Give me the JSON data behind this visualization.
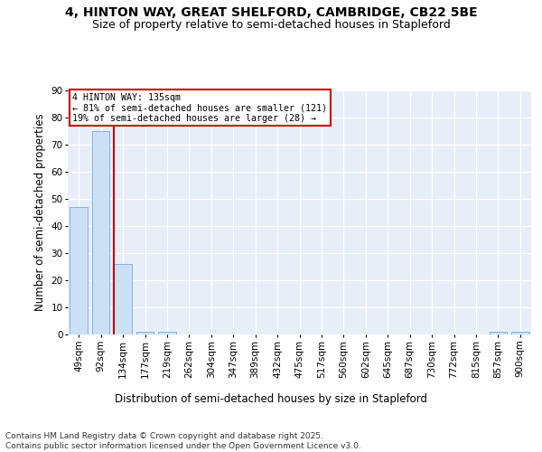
{
  "title_line1": "4, HINTON WAY, GREAT SHELFORD, CAMBRIDGE, CB22 5BE",
  "title_line2": "Size of property relative to semi-detached houses in Stapleford",
  "xlabel": "Distribution of semi-detached houses by size in Stapleford",
  "ylabel": "Number of semi-detached properties",
  "categories": [
    "49sqm",
    "92sqm",
    "134sqm",
    "177sqm",
    "219sqm",
    "262sqm",
    "304sqm",
    "347sqm",
    "389sqm",
    "432sqm",
    "475sqm",
    "517sqm",
    "560sqm",
    "602sqm",
    "645sqm",
    "687sqm",
    "730sqm",
    "772sqm",
    "815sqm",
    "857sqm",
    "900sqm"
  ],
  "values": [
    47,
    75,
    26,
    1,
    1,
    0,
    0,
    0,
    0,
    0,
    0,
    0,
    0,
    0,
    0,
    0,
    0,
    0,
    0,
    1,
    1
  ],
  "bar_color": "#cce0f5",
  "bar_edge_color": "#7fb4d8",
  "property_line_index": 2,
  "annotation_title": "4 HINTON WAY: 135sqm",
  "annotation_line1": "← 81% of semi-detached houses are smaller (121)",
  "annotation_line2": "19% of semi-detached houses are larger (28) →",
  "annotation_box_color": "#ffffff",
  "annotation_box_edge_color": "#cc0000",
  "line_color": "#cc0000",
  "ylim": [
    0,
    90
  ],
  "yticks": [
    0,
    10,
    20,
    30,
    40,
    50,
    60,
    70,
    80,
    90
  ],
  "background_color": "#e8eef8",
  "footer": "Contains HM Land Registry data © Crown copyright and database right 2025.\nContains public sector information licensed under the Open Government Licence v3.0.",
  "title_fontsize": 10,
  "subtitle_fontsize": 9,
  "axis_label_fontsize": 8.5,
  "tick_fontsize": 7.5,
  "footer_fontsize": 6.5
}
